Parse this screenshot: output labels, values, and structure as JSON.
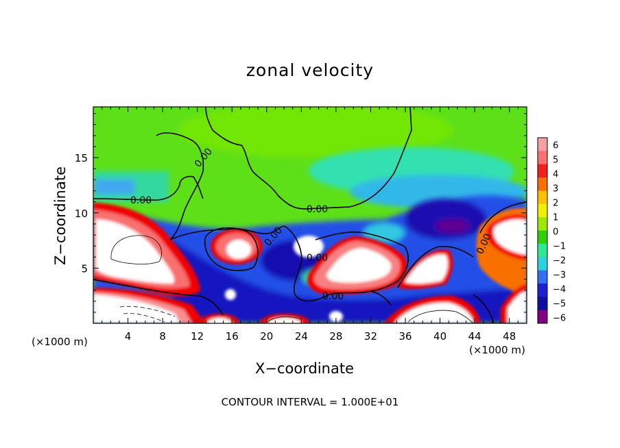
{
  "chart_data": {
    "type": "heatmap",
    "title": "zonal velocity",
    "xlabel": "X−coordinate",
    "ylabel": "Z−coordinate",
    "x_unit_left": "(×1000 m)",
    "x_unit_right": "(×1000 m)",
    "footer": "CONTOUR INTERVAL = 1.000E+01",
    "xlim": [
      0,
      50
    ],
    "ylim": [
      0,
      19.6
    ],
    "x_ticks": [
      "4",
      "8",
      "12",
      "16",
      "20",
      "24",
      "28",
      "32",
      "36",
      "40",
      "44",
      "48"
    ],
    "y_ticks": [
      "5",
      "10",
      "15"
    ],
    "colorbar": {
      "labels": [
        "6",
        "5",
        "4",
        "3",
        "2",
        "1",
        "0",
        "−1",
        "−2",
        "−3",
        "−4",
        "−5",
        "−6"
      ],
      "colors": [
        "#f4a0a0",
        "#f87070",
        "#f02020",
        "#f87000",
        "#ffc000",
        "#f0f000",
        "#a0e800",
        "#30d000",
        "#30e890",
        "#30d0e0",
        "#3070f0",
        "#2020d0",
        "#1010a0",
        "#800080"
      ]
    },
    "contour_label": "0.00",
    "grid": false
  }
}
